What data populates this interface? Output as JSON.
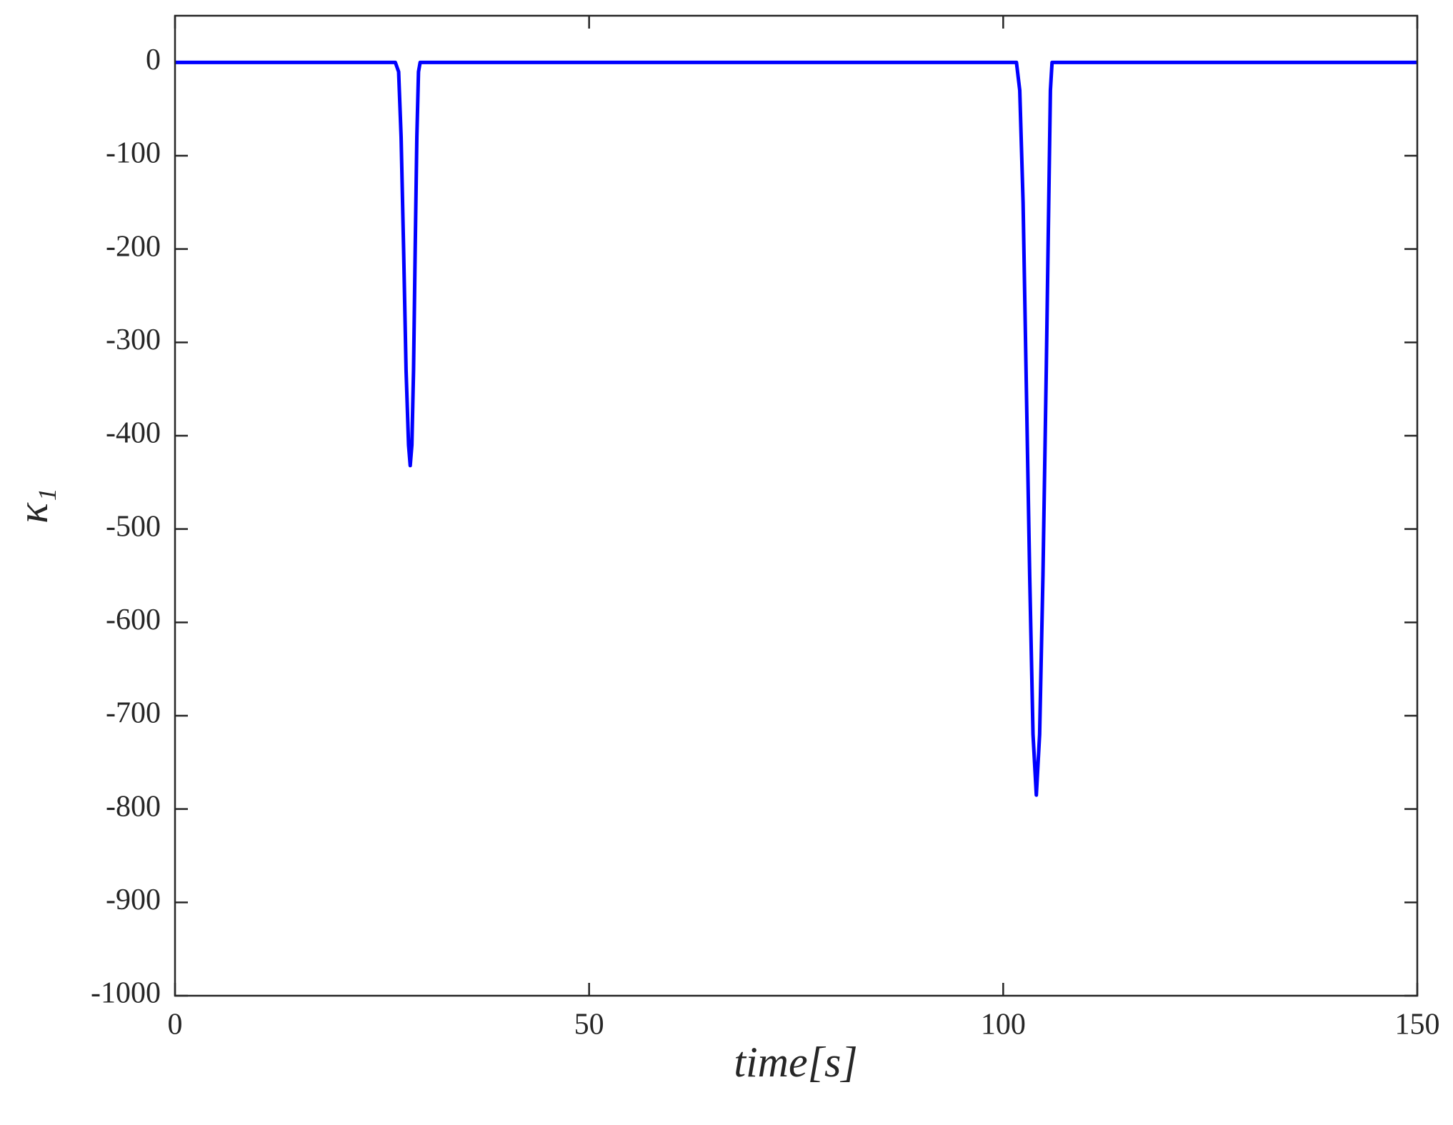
{
  "chart_data": {
    "type": "line",
    "xlabel": "time[s]",
    "ylabel": "κ₁",
    "x": [
      0,
      26.6,
      27.0,
      27.3,
      27.6,
      27.9,
      28.2,
      28.4,
      28.6,
      28.8,
      29.0,
      29.2,
      29.4,
      29.6,
      101.6,
      102.0,
      102.4,
      102.8,
      103.2,
      103.6,
      104.0,
      104.4,
      104.8,
      105.2,
      105.5,
      105.7,
      105.9,
      150
    ],
    "values": [
      0,
      0,
      -10,
      -80,
      -200,
      -330,
      -410,
      -432,
      -410,
      -330,
      -200,
      -80,
      -10,
      0,
      0,
      -30,
      -150,
      -350,
      -550,
      -720,
      -785,
      -720,
      -550,
      -330,
      -150,
      -30,
      0,
      0
    ],
    "color": "#0000ff",
    "xlim": [
      0,
      150
    ],
    "xticks": [
      0,
      50,
      100,
      150
    ],
    "ylim": [
      -1000,
      50
    ],
    "yticks": [
      0,
      -100,
      -200,
      -300,
      -400,
      -500,
      -600,
      -700,
      -800,
      -900,
      -1000
    ],
    "grid": false
  }
}
